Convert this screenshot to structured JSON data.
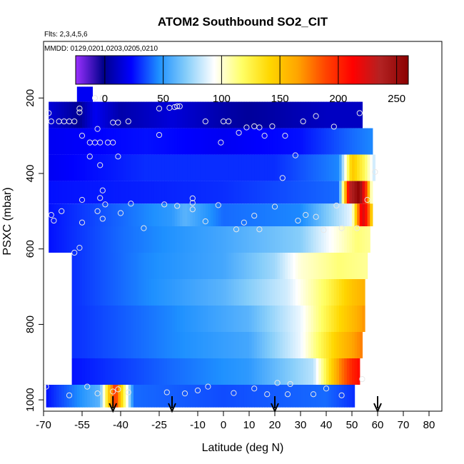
{
  "chart_data": {
    "type": "heatmap",
    "title": "ATOM2 Southbound SO2_CIT",
    "annotations": {
      "flights": "Flts: 2,3,4,5,6",
      "dates": "MMDD: 0129,0201,0203,0205,0210"
    },
    "xlabel": "Latitude (deg N)",
    "ylabel": "PSXC (mbar)",
    "xlim": [
      -70,
      85
    ],
    "ylim": [
      1030,
      50
    ],
    "x_ticks": [
      -70,
      -55,
      -40,
      -25,
      -10,
      0,
      10,
      20,
      30,
      40,
      50,
      60,
      70,
      80
    ],
    "y_ticks": [
      200,
      400,
      600,
      800,
      1000
    ],
    "colorbar": {
      "ticks": [
        0,
        50,
        100,
        150,
        200,
        250
      ],
      "range": [
        -25,
        260
      ],
      "colors": [
        "#9b30ff",
        "#00008b",
        "#0000ff",
        "#1e90ff",
        "#87cefa",
        "#ffffff",
        "#ffff66",
        "#ffd700",
        "#ffa500",
        "#ff4500",
        "#ff0000",
        "#b22222",
        "#8b0000"
      ]
    },
    "pressure_bands": [
      {
        "p": [
          170,
          210
        ],
        "lat": [
          -57,
          -51
        ],
        "segs": [
          [
            -57,
            20
          ]
        ]
      },
      {
        "p": [
          210,
          280
        ],
        "lat": [
          -68,
          54
        ],
        "segs": [
          [
            -68,
            15
          ],
          [
            -56,
            0
          ],
          [
            -50,
            20
          ],
          [
            -40,
            5
          ],
          [
            -20,
            15
          ],
          [
            0,
            5
          ],
          [
            10,
            2
          ],
          [
            40,
            10
          ],
          [
            54,
            10
          ]
        ]
      },
      {
        "p": [
          280,
          350
        ],
        "lat": [
          -68,
          58
        ],
        "segs": [
          [
            -68,
            20
          ],
          [
            -30,
            25
          ],
          [
            0,
            20
          ],
          [
            30,
            25
          ],
          [
            50,
            40
          ],
          [
            58,
            45
          ]
        ]
      },
      {
        "p": [
          350,
          420
        ],
        "lat": [
          -68,
          59
        ],
        "segs": [
          [
            -68,
            20
          ],
          [
            -30,
            30
          ],
          [
            20,
            30
          ],
          [
            45,
            45
          ],
          [
            50,
            150
          ],
          [
            55,
            120
          ],
          [
            59,
            80
          ]
        ]
      },
      {
        "p": [
          420,
          480
        ],
        "lat": [
          -68,
          58
        ],
        "segs": [
          [
            -68,
            25
          ],
          [
            0,
            30
          ],
          [
            45,
            40
          ],
          [
            49,
            230
          ],
          [
            53,
            260
          ],
          [
            56,
            180
          ],
          [
            58,
            80
          ]
        ]
      },
      {
        "p": [
          480,
          540
        ],
        "lat": [
          -68,
          58
        ],
        "segs": [
          [
            -68,
            25
          ],
          [
            -20,
            50
          ],
          [
            -15,
            60
          ],
          [
            0,
            40
          ],
          [
            30,
            45
          ],
          [
            50,
            90
          ],
          [
            54,
            230
          ],
          [
            56,
            200
          ],
          [
            58,
            130
          ]
        ]
      },
      {
        "p": [
          540,
          610
        ],
        "lat": [
          -68,
          57
        ],
        "segs": [
          [
            -68,
            25
          ],
          [
            -40,
            40
          ],
          [
            0,
            55
          ],
          [
            30,
            70
          ],
          [
            45,
            100
          ],
          [
            52,
            115
          ],
          [
            57,
            110
          ]
        ]
      },
      {
        "p": [
          610,
          680
        ],
        "lat": [
          -59,
          56
        ],
        "segs": [
          [
            -59,
            30
          ],
          [
            -30,
            45
          ],
          [
            0,
            55
          ],
          [
            20,
            75
          ],
          [
            30,
            100
          ],
          [
            45,
            115
          ],
          [
            56,
            110
          ]
        ]
      },
      {
        "p": [
          680,
          750
        ],
        "lat": [
          -59,
          55
        ],
        "segs": [
          [
            -59,
            30
          ],
          [
            -30,
            45
          ],
          [
            0,
            60
          ],
          [
            25,
            85
          ],
          [
            40,
            120
          ],
          [
            50,
            150
          ],
          [
            55,
            160
          ]
        ]
      },
      {
        "p": [
          750,
          820
        ],
        "lat": [
          -59,
          55
        ],
        "segs": [
          [
            -59,
            30
          ],
          [
            -20,
            45
          ],
          [
            10,
            60
          ],
          [
            30,
            90
          ],
          [
            45,
            140
          ],
          [
            52,
            160
          ],
          [
            55,
            170
          ]
        ]
      },
      {
        "p": [
          820,
          890
        ],
        "lat": [
          -59,
          54
        ],
        "segs": [
          [
            -59,
            30
          ],
          [
            -20,
            45
          ],
          [
            10,
            55
          ],
          [
            30,
            90
          ],
          [
            45,
            150
          ],
          [
            52,
            170
          ],
          [
            54,
            175
          ]
        ]
      },
      {
        "p": [
          890,
          960
        ],
        "lat": [
          -59,
          53
        ],
        "segs": [
          [
            -59,
            25
          ],
          [
            -20,
            40
          ],
          [
            10,
            50
          ],
          [
            35,
            80
          ],
          [
            45,
            170
          ],
          [
            50,
            200
          ],
          [
            53,
            210
          ]
        ]
      },
      {
        "p": [
          960,
          1020
        ],
        "lat": [
          -69,
          51
        ],
        "segs": [
          [
            -69,
            25
          ],
          [
            -48,
            60
          ],
          [
            -45,
            140
          ],
          [
            -42,
            200
          ],
          [
            -40,
            150
          ],
          [
            -35,
            40
          ],
          [
            0,
            35
          ],
          [
            40,
            40
          ],
          [
            51,
            30
          ]
        ]
      }
    ],
    "markers_lat": [
      -43,
      -20,
      20,
      60
    ],
    "samples": [
      [
        -68,
        240
      ],
      [
        -67,
        262
      ],
      [
        -64,
        262
      ],
      [
        -62,
        262
      ],
      [
        -60,
        262
      ],
      [
        -58,
        262
      ],
      [
        -56,
        228
      ],
      [
        -56,
        238
      ],
      [
        -50,
        200
      ],
      [
        -47,
        200
      ],
      [
        -43,
        265
      ],
      [
        -41,
        265
      ],
      [
        -37,
        262
      ],
      [
        -25,
        228
      ],
      [
        -21,
        226
      ],
      [
        -19,
        224
      ],
      [
        -18,
        222
      ],
      [
        -17,
        222
      ],
      [
        -7,
        262
      ],
      [
        0,
        262
      ],
      [
        2,
        262
      ],
      [
        12,
        275
      ],
      [
        14,
        278
      ],
      [
        19,
        275
      ],
      [
        31,
        262
      ],
      [
        36,
        248
      ],
      [
        43,
        276
      ],
      [
        53,
        240
      ],
      [
        -55,
        300
      ],
      [
        -52,
        318
      ],
      [
        -50,
        318
      ],
      [
        -48,
        318
      ],
      [
        -45,
        318
      ],
      [
        -43,
        318
      ],
      [
        -49,
        282
      ],
      [
        -52,
        355
      ],
      [
        -41,
        355
      ],
      [
        -48,
        378
      ],
      [
        -25,
        298
      ],
      [
        -1,
        318
      ],
      [
        6,
        292
      ],
      [
        9,
        278
      ],
      [
        16,
        300
      ],
      [
        24,
        300
      ],
      [
        28,
        352
      ],
      [
        23,
        412
      ],
      [
        59,
        396
      ],
      [
        -47,
        445
      ],
      [
        -48,
        465
      ],
      [
        -55,
        470
      ],
      [
        -49,
        500
      ],
      [
        -47,
        520
      ],
      [
        -40,
        505
      ],
      [
        -46,
        482
      ],
      [
        -36,
        480
      ],
      [
        -31,
        545
      ],
      [
        -23,
        482
      ],
      [
        -18,
        486
      ],
      [
        -12,
        466
      ],
      [
        -12,
        478
      ],
      [
        -12,
        495
      ],
      [
        -7,
        527
      ],
      [
        -2,
        484
      ],
      [
        5,
        548
      ],
      [
        8,
        530
      ],
      [
        12,
        512
      ],
      [
        14,
        548
      ],
      [
        20,
        488
      ],
      [
        29,
        525
      ],
      [
        32,
        510
      ],
      [
        36,
        515
      ],
      [
        39,
        550
      ],
      [
        44,
        485
      ],
      [
        46,
        545
      ],
      [
        52,
        545
      ],
      [
        56,
        470
      ],
      [
        -67,
        510
      ],
      [
        -66,
        525
      ],
      [
        -63,
        500
      ],
      [
        -58,
        610
      ],
      [
        -56,
        597
      ],
      [
        -55,
        530
      ],
      [
        -69,
        965
      ],
      [
        -60,
        988
      ],
      [
        -53,
        965
      ],
      [
        -49,
        983
      ],
      [
        -43,
        978
      ],
      [
        -41,
        972
      ],
      [
        -37,
        980
      ],
      [
        -22,
        980
      ],
      [
        -15,
        983
      ],
      [
        -10,
        975
      ],
      [
        -6,
        965
      ],
      [
        4,
        982
      ],
      [
        12,
        970
      ],
      [
        25,
        985
      ],
      [
        35,
        985
      ],
      [
        40,
        970
      ],
      [
        46,
        988
      ],
      [
        54,
        945
      ],
      [
        17,
        985
      ],
      [
        21,
        955
      ],
      [
        26,
        958
      ]
    ]
  }
}
